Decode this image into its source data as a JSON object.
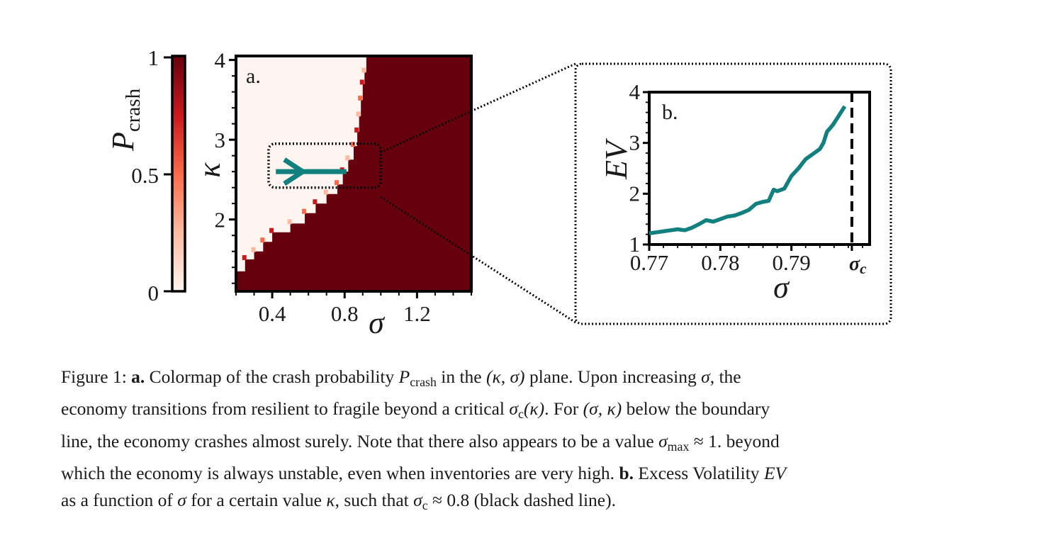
{
  "chart_data": [
    {
      "type": "heatmap",
      "panel_label": "a.",
      "colorbar": {
        "label_main": "P",
        "label_sub": "crash",
        "ticks": [
          "1",
          "0.5",
          "0"
        ],
        "range": [
          0,
          1
        ],
        "colors": [
          "#fff5f0",
          "#fcbba1",
          "#fb6a4a",
          "#cb181d",
          "#67000d"
        ]
      },
      "x": {
        "label": "σ",
        "range": [
          0.2,
          1.5
        ],
        "ticks": [
          0.4,
          0.8,
          1.2
        ],
        "tick_labels": [
          "0.4",
          "0.8",
          "1.2"
        ]
      },
      "y": {
        "label": "κ",
        "range": [
          1.1,
          4.05
        ],
        "ticks": [
          2,
          3,
          4
        ],
        "tick_labels": [
          "2",
          "3",
          "4"
        ]
      },
      "boundary": [
        [
          0.2,
          1.35
        ],
        [
          0.25,
          1.5
        ],
        [
          0.3,
          1.6
        ],
        [
          0.35,
          1.72
        ],
        [
          0.4,
          1.84
        ],
        [
          0.5,
          1.95
        ],
        [
          0.58,
          2.08
        ],
        [
          0.64,
          2.2
        ],
        [
          0.7,
          2.32
        ],
        [
          0.76,
          2.44
        ],
        [
          0.79,
          2.6
        ],
        [
          0.82,
          2.75
        ],
        [
          0.85,
          2.92
        ],
        [
          0.87,
          3.1
        ],
        [
          0.88,
          3.3
        ],
        [
          0.89,
          3.5
        ],
        [
          0.9,
          3.7
        ],
        [
          0.91,
          3.85
        ],
        [
          0.92,
          4.05
        ]
      ],
      "arrow": {
        "from": [
          0.42,
          2.6
        ],
        "to": [
          0.81,
          2.6
        ],
        "color": "#138080"
      },
      "zoom_box": {
        "sigma": [
          0.38,
          1.0
        ],
        "kappa": [
          2.4,
          2.95
        ]
      },
      "crash_color": "#67000d",
      "safe_color": "#fff5f0"
    },
    {
      "type": "line",
      "panel_label": "b.",
      "x": {
        "label": "σ",
        "range": [
          0.77,
          0.801
        ],
        "ticks": [
          0.77,
          0.78,
          0.79
        ],
        "tick_labels": [
          "0.77",
          "0.78",
          "0.79"
        ]
      },
      "y": {
        "label": "EV",
        "range": [
          1,
          4
        ],
        "ticks": [
          1,
          2,
          3,
          4
        ],
        "tick_labels": [
          "1",
          "2",
          "3",
          "4"
        ]
      },
      "critical": {
        "value": 0.7985,
        "label": "σ",
        "label_sub": "c"
      },
      "series": [
        {
          "name": "EV",
          "color": "#138080",
          "x": [
            0.77,
            0.771,
            0.772,
            0.773,
            0.774,
            0.775,
            0.776,
            0.777,
            0.778,
            0.779,
            0.78,
            0.781,
            0.782,
            0.783,
            0.784,
            0.785,
            0.786,
            0.7868,
            0.7875,
            0.788,
            0.789,
            0.79,
            0.791,
            0.792,
            0.793,
            0.794,
            0.7945,
            0.795,
            0.7958,
            0.7965,
            0.7975
          ],
          "y": [
            1.22,
            1.24,
            1.26,
            1.28,
            1.3,
            1.28,
            1.33,
            1.4,
            1.48,
            1.45,
            1.5,
            1.55,
            1.57,
            1.62,
            1.68,
            1.8,
            1.84,
            1.86,
            2.08,
            2.05,
            2.1,
            2.35,
            2.5,
            2.68,
            2.78,
            2.88,
            3.0,
            3.22,
            3.35,
            3.5,
            3.72
          ]
        }
      ]
    }
  ],
  "caption": {
    "fig_label": "Figure 1:",
    "a_label": "a.",
    "l1": {
      "t1": "Colormap of the crash probability",
      "pvar": "P",
      "psub": "crash",
      "t2": "in the",
      "pair": "(κ, σ)",
      "t3": "plane.  Upon increasing",
      "sig": "σ",
      "t4": ", the"
    },
    "l2": {
      "t1": "economy transitions from resilient to fragile beyond a critical",
      "sc": "σ",
      "csub": "c",
      "kp": "(κ)",
      "t2": ".  For",
      "pair": "(σ, κ)",
      "t3": "below the boundary"
    },
    "l3": {
      "t1": "line, the economy crashes almost surely. Note that there also appears to be a value",
      "sig": "σ",
      "max": "max",
      "approx": "≈ 1.",
      "t2": "beyond"
    },
    "l4": {
      "t1": "which the economy is always unstable, even when inventories are very high.",
      "b_label": "b.",
      "t2": "Excess Volatility",
      "ev": "EV"
    },
    "l5": {
      "t1": "as a function of",
      "sig": "σ",
      "t2": "for a certain value",
      "kap": "κ",
      "t3": ", such that",
      "sc": "σ",
      "csub": "c",
      "approx": "≈ 0.8",
      "t4": "(black dashed line)."
    }
  }
}
